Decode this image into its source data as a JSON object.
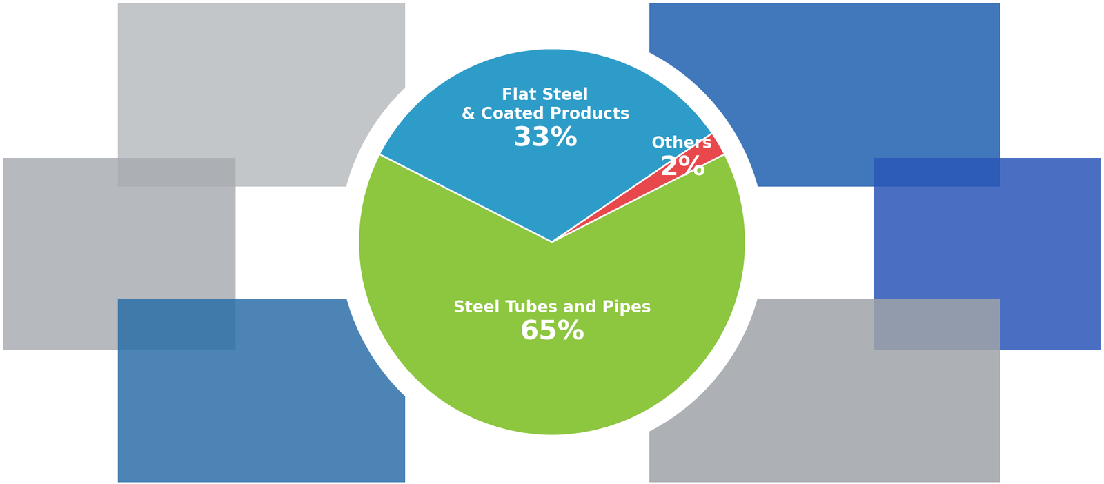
{
  "chart_data": {
    "type": "pie",
    "categories": [
      "Steel Tubes and Pipes",
      "Flat Steel & Coated Products",
      "Others"
    ],
    "values": [
      65,
      33,
      2
    ],
    "value_labels": [
      "65%",
      "33%",
      "2%"
    ],
    "colors": [
      "#8dc63f",
      "#2e9cc8",
      "#e8474c"
    ],
    "data_labels": true
  }
}
